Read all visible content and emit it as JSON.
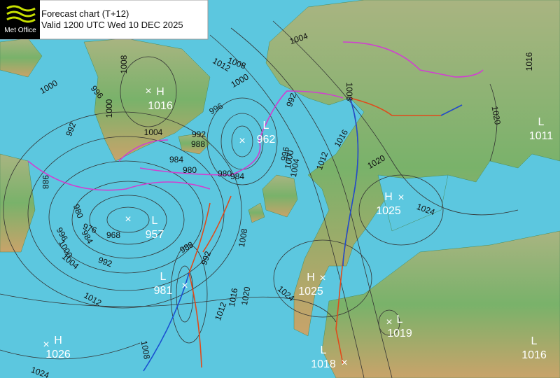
{
  "header": {
    "logo": "Met Office",
    "title": "Forecast chart (T+12)",
    "valid": "Valid 1200 UTC Wed 10 DEC 2025"
  },
  "pressure_centers": [
    {
      "type": "H",
      "value": 1016
    },
    {
      "type": "L",
      "value": 962
    },
    {
      "type": "L",
      "value": 957
    },
    {
      "type": "L",
      "value": 981
    },
    {
      "type": "H",
      "value": 1025
    },
    {
      "type": "H",
      "value": 1025
    },
    {
      "type": "L",
      "value": 1011
    },
    {
      "type": "L",
      "value": 1019
    },
    {
      "type": "H",
      "value": 1026
    },
    {
      "type": "L",
      "value": 1018
    },
    {
      "type": "L",
      "value": 1016
    }
  ],
  "isobar_labels": [
    1008,
    1000,
    996,
    1000,
    992,
    1004,
    992,
    988,
    984,
    980,
    980,
    984,
    996,
    1012,
    1008,
    1000,
    1004,
    992,
    996,
    1000,
    1004,
    1012,
    1016,
    1008,
    1020,
    1024,
    1020,
    1016,
    988,
    980,
    976,
    968,
    984,
    996,
    1000,
    1004,
    992,
    988,
    992,
    1008,
    1012,
    1012,
    1016,
    1020,
    1024,
    1008,
    1024
  ]
}
